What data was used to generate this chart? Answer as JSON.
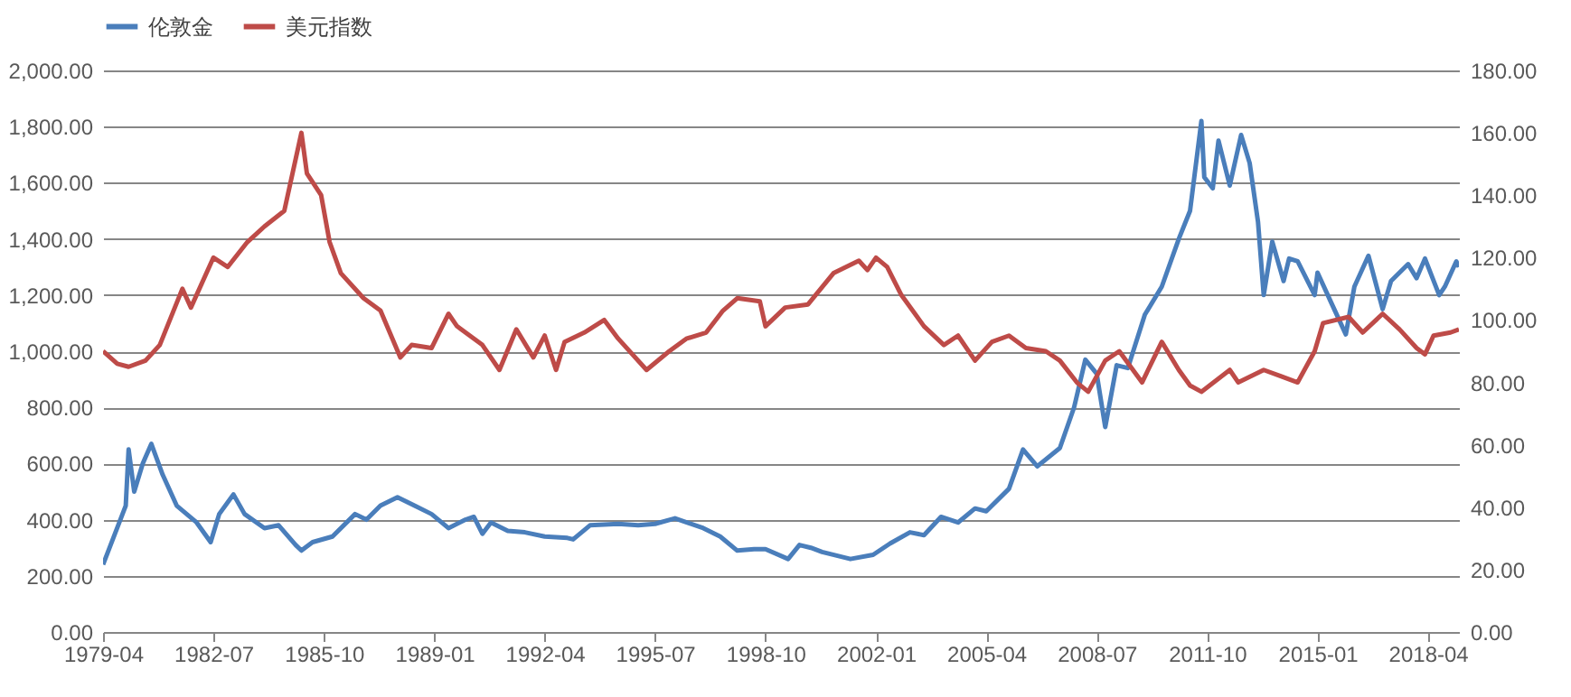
{
  "chart_data": {
    "type": "line",
    "xlim": [
      "1979-04",
      "2019-03"
    ],
    "xticks": [
      "1979-04",
      "1982-07",
      "1985-10",
      "1989-01",
      "1992-04",
      "1995-07",
      "1998-10",
      "2002-01",
      "2005-04",
      "2008-07",
      "2011-10",
      "2015-01",
      "2018-04"
    ],
    "ylim": [
      0,
      2000
    ],
    "yticks": [
      {
        "value": 0,
        "label": "0.00"
      },
      {
        "value": 200,
        "label": "200.00"
      },
      {
        "value": 400,
        "label": "400.00"
      },
      {
        "value": 600,
        "label": "600.00"
      },
      {
        "value": 800,
        "label": "800.00"
      },
      {
        "value": 1000,
        "label": "1,000.00"
      },
      {
        "value": 1200,
        "label": "1,200.00"
      },
      {
        "value": 1400,
        "label": "1,400.00"
      },
      {
        "value": 1600,
        "label": "1,600.00"
      },
      {
        "value": 1800,
        "label": "1,800.00"
      },
      {
        "value": 2000,
        "label": "2,000.00"
      }
    ],
    "y2lim": [
      0,
      180
    ],
    "y2ticks": [
      {
        "value": 0,
        "label": "0.00"
      },
      {
        "value": 20,
        "label": "20.00"
      },
      {
        "value": 40,
        "label": "40.00"
      },
      {
        "value": 60,
        "label": "60.00"
      },
      {
        "value": 80,
        "label": "80.00"
      },
      {
        "value": 100,
        "label": "100.00"
      },
      {
        "value": 120,
        "label": "120.00"
      },
      {
        "value": 140,
        "label": "140.00"
      },
      {
        "value": 160,
        "label": "160.00"
      },
      {
        "value": 180,
        "label": "180.00"
      }
    ],
    "grid": "y",
    "legend": "top",
    "line_style": "solid",
    "series": [
      {
        "name": "伦敦金",
        "color": "#4a7ebb",
        "axis": "y",
        "x": [
          "1979-04",
          "1979-12",
          "1980-01",
          "1980-03",
          "1980-06",
          "1980-09",
          "1981-01",
          "1981-06",
          "1982-01",
          "1982-06",
          "1982-09",
          "1983-02",
          "1983-06",
          "1984-01",
          "1984-06",
          "1984-12",
          "1985-02",
          "1985-06",
          "1986-01",
          "1986-09",
          "1987-01",
          "1987-06",
          "1987-12",
          "1988-06",
          "1988-12",
          "1989-06",
          "1989-12",
          "1990-03",
          "1990-06",
          "1990-09",
          "1991-03",
          "1991-09",
          "1992-04",
          "1992-12",
          "1993-02",
          "1993-08",
          "1994-06",
          "1995-01",
          "1995-07",
          "1996-02",
          "1996-12",
          "1997-06",
          "1997-12",
          "1998-06",
          "1998-10",
          "1999-06",
          "1999-10",
          "2000-02",
          "2000-06",
          "2001-04",
          "2001-12",
          "2002-06",
          "2003-01",
          "2003-06",
          "2003-12",
          "2004-06",
          "2004-12",
          "2005-04",
          "2005-12",
          "2006-05",
          "2006-10",
          "2007-06",
          "2007-11",
          "2008-03",
          "2008-07",
          "2008-10",
          "2009-02",
          "2009-06",
          "2009-12",
          "2010-06",
          "2010-12",
          "2011-04",
          "2011-08",
          "2011-09",
          "2011-12",
          "2012-02",
          "2012-06",
          "2012-10",
          "2013-01",
          "2013-04",
          "2013-06",
          "2013-09",
          "2014-01",
          "2014-03",
          "2014-06",
          "2014-12",
          "2015-01",
          "2015-06",
          "2015-11",
          "2016-02",
          "2016-07",
          "2016-12",
          "2017-03",
          "2017-09",
          "2017-12",
          "2018-03",
          "2018-08",
          "2018-10",
          "2019-02",
          "2019-03"
        ],
        "values": [
          240,
          450,
          650,
          500,
          600,
          670,
          560,
          450,
          390,
          320,
          420,
          490,
          420,
          370,
          380,
          310,
          290,
          320,
          340,
          420,
          400,
          450,
          480,
          450,
          420,
          370,
          400,
          410,
          350,
          390,
          360,
          355,
          340,
          335,
          330,
          380,
          385,
          380,
          385,
          405,
          370,
          340,
          290,
          295,
          295,
          260,
          310,
          300,
          285,
          260,
          275,
          315,
          355,
          345,
          410,
          390,
          440,
          430,
          510,
          650,
          590,
          655,
          800,
          970,
          920,
          730,
          950,
          940,
          1130,
          1230,
          1400,
          1500,
          1820,
          1620,
          1580,
          1750,
          1590,
          1770,
          1670,
          1460,
          1200,
          1390,
          1250,
          1330,
          1320,
          1200,
          1280,
          1170,
          1060,
          1230,
          1340,
          1150,
          1250,
          1310,
          1260,
          1330,
          1200,
          1230,
          1320,
          1300
        ]
      },
      {
        "name": "美元指数",
        "color": "#be4b48",
        "axis": "y2",
        "x": [
          "1979-04",
          "1979-09",
          "1980-01",
          "1980-07",
          "1980-12",
          "1981-08",
          "1981-11",
          "1982-07",
          "1982-12",
          "1983-07",
          "1984-01",
          "1984-08",
          "1985-02",
          "1985-04",
          "1985-09",
          "1985-12",
          "1986-04",
          "1986-12",
          "1987-06",
          "1988-01",
          "1988-05",
          "1988-12",
          "1989-06",
          "1989-09",
          "1990-06",
          "1990-12",
          "1991-06",
          "1991-12",
          "1992-04",
          "1992-08",
          "1992-11",
          "1993-06",
          "1994-01",
          "1994-06",
          "1995-04",
          "1995-12",
          "1996-06",
          "1997-01",
          "1997-07",
          "1997-12",
          "1998-08",
          "1998-10",
          "1999-05",
          "2000-01",
          "2000-10",
          "2001-07",
          "2001-10",
          "2002-01",
          "2002-05",
          "2002-10",
          "2003-06",
          "2004-01",
          "2004-06",
          "2004-12",
          "2005-06",
          "2005-12",
          "2006-06",
          "2007-01",
          "2007-06",
          "2007-12",
          "2008-04",
          "2008-10",
          "2009-03",
          "2009-11",
          "2010-06",
          "2010-12",
          "2011-04",
          "2011-08",
          "2012-06",
          "2012-09",
          "2013-06",
          "2013-12",
          "2014-06",
          "2014-12",
          "2015-03",
          "2015-12",
          "2016-05",
          "2016-12",
          "2017-06",
          "2017-12",
          "2018-03",
          "2018-06",
          "2018-12",
          "2019-03"
        ],
        "values": [
          90,
          86,
          85,
          87,
          92,
          110,
          104,
          120,
          117,
          125,
          130,
          135,
          160,
          147,
          140,
          125,
          115,
          107,
          103,
          88,
          92,
          91,
          102,
          98,
          92,
          84,
          97,
          88,
          95,
          84,
          93,
          96,
          100,
          94,
          84,
          90,
          94,
          96,
          103,
          107,
          106,
          98,
          104,
          105,
          115,
          119,
          116,
          120,
          117,
          108,
          98,
          92,
          95,
          87,
          93,
          95,
          91,
          90,
          87,
          80,
          77,
          87,
          90,
          80,
          93,
          84,
          79,
          77,
          84,
          80,
          84,
          82,
          80,
          90,
          99,
          101,
          96,
          102,
          97,
          91,
          89,
          95,
          96,
          97
        ]
      }
    ]
  }
}
